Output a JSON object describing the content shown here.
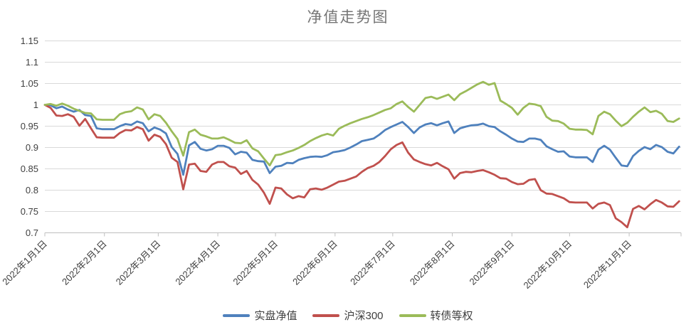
{
  "title": "净值走势图",
  "colors": {
    "series_blue": "#4F81BD",
    "series_red": "#C0504D",
    "series_green": "#9BBB59",
    "gridline": "#D9D9D9",
    "axis": "#BFBFBF",
    "tick_text": "#404040",
    "title_text": "#757575",
    "background": "#FFFFFF"
  },
  "chart_data": {
    "type": "line",
    "title": "净值走势图",
    "xlabel": "",
    "ylabel": "",
    "grid": "horizontal",
    "legend_position": "bottom-center",
    "ylim": [
      0.7,
      1.15
    ],
    "x_unit": "days_since_2022-01-01",
    "x_axis_max_day": 331,
    "y_ticks": [
      {
        "value": 1.15,
        "label": "1.15"
      },
      {
        "value": 1.1,
        "label": "1.1"
      },
      {
        "value": 1.05,
        "label": "1.05"
      },
      {
        "value": 1.0,
        "label": "1"
      },
      {
        "value": 0.95,
        "label": "0.95"
      },
      {
        "value": 0.9,
        "label": "0.9"
      },
      {
        "value": 0.85,
        "label": "0.85"
      },
      {
        "value": 0.8,
        "label": "0.8"
      },
      {
        "value": 0.75,
        "label": "0.75"
      },
      {
        "value": 0.7,
        "label": "0.7"
      }
    ],
    "x_ticks": [
      {
        "day": 0,
        "label": "2022年1月1日"
      },
      {
        "day": 31,
        "label": "2022年2月1日"
      },
      {
        "day": 59,
        "label": "2022年3月1日"
      },
      {
        "day": 90,
        "label": "2022年4月1日"
      },
      {
        "day": 120,
        "label": "2022年5月1日"
      },
      {
        "day": 151,
        "label": "2022年6月1日"
      },
      {
        "day": 181,
        "label": "2022年7月1日"
      },
      {
        "day": 212,
        "label": "2022年8月1日"
      },
      {
        "day": 243,
        "label": "2022年9月1日"
      },
      {
        "day": 273,
        "label": "2022年10月1日"
      },
      {
        "day": 304,
        "label": "2022年11月1日"
      }
    ],
    "x_days": [
      0,
      3,
      6,
      9,
      12,
      15,
      18,
      21,
      24,
      27,
      30,
      33,
      36,
      39,
      42,
      45,
      48,
      51,
      54,
      57,
      60,
      63,
      66,
      69,
      72,
      75,
      78,
      81,
      84,
      87,
      90,
      93,
      96,
      99,
      102,
      105,
      108,
      111,
      114,
      117,
      120,
      123,
      126,
      129,
      132,
      135,
      138,
      141,
      144,
      147,
      150,
      153,
      156,
      159,
      162,
      165,
      168,
      171,
      174,
      177,
      180,
      183,
      186,
      189,
      192,
      195,
      198,
      201,
      204,
      207,
      210,
      213,
      216,
      219,
      222,
      225,
      228,
      231,
      234,
      237,
      240,
      243,
      246,
      249,
      252,
      255,
      258,
      261,
      264,
      267,
      270,
      273,
      276,
      279,
      282,
      285,
      288,
      291,
      294,
      297,
      300,
      303,
      306,
      309,
      312,
      315,
      318,
      321,
      324,
      327,
      330
    ],
    "series": [
      {
        "name": "实盘净值",
        "color": "#4F81BD",
        "values": [
          1.0,
          0.999,
          0.992,
          0.996,
          0.989,
          0.984,
          0.988,
          0.976,
          0.974,
          0.945,
          0.943,
          0.943,
          0.943,
          0.95,
          0.955,
          0.953,
          0.961,
          0.957,
          0.938,
          0.947,
          0.942,
          0.933,
          0.901,
          0.885,
          0.836,
          0.905,
          0.913,
          0.897,
          0.893,
          0.896,
          0.904,
          0.904,
          0.899,
          0.884,
          0.89,
          0.888,
          0.871,
          0.868,
          0.867,
          0.84,
          0.855,
          0.857,
          0.864,
          0.863,
          0.871,
          0.875,
          0.878,
          0.879,
          0.878,
          0.882,
          0.889,
          0.891,
          0.894,
          0.9,
          0.907,
          0.915,
          0.918,
          0.921,
          0.93,
          0.941,
          0.948,
          0.954,
          0.96,
          0.948,
          0.934,
          0.947,
          0.954,
          0.957,
          0.952,
          0.957,
          0.961,
          0.934,
          0.945,
          0.949,
          0.952,
          0.953,
          0.956,
          0.95,
          0.948,
          0.938,
          0.93,
          0.921,
          0.914,
          0.913,
          0.921,
          0.921,
          0.918,
          0.903,
          0.896,
          0.89,
          0.891,
          0.879,
          0.877,
          0.877,
          0.877,
          0.866,
          0.895,
          0.904,
          0.895,
          0.876,
          0.858,
          0.856,
          0.88,
          0.892,
          0.901,
          0.896,
          0.906,
          0.901,
          0.89,
          0.886,
          0.902
        ]
      },
      {
        "name": "沪深300",
        "color": "#C0504D",
        "values": [
          1.0,
          0.993,
          0.975,
          0.974,
          0.978,
          0.972,
          0.951,
          0.967,
          0.945,
          0.924,
          0.923,
          0.923,
          0.923,
          0.934,
          0.941,
          0.94,
          0.948,
          0.943,
          0.916,
          0.93,
          0.925,
          0.908,
          0.876,
          0.866,
          0.802,
          0.86,
          0.862,
          0.845,
          0.843,
          0.86,
          0.866,
          0.866,
          0.856,
          0.853,
          0.838,
          0.845,
          0.824,
          0.813,
          0.794,
          0.768,
          0.806,
          0.804,
          0.79,
          0.781,
          0.786,
          0.783,
          0.802,
          0.804,
          0.801,
          0.806,
          0.813,
          0.82,
          0.822,
          0.827,
          0.832,
          0.843,
          0.852,
          0.857,
          0.866,
          0.88,
          0.896,
          0.906,
          0.912,
          0.888,
          0.872,
          0.866,
          0.861,
          0.858,
          0.864,
          0.856,
          0.849,
          0.827,
          0.84,
          0.843,
          0.842,
          0.845,
          0.847,
          0.842,
          0.836,
          0.828,
          0.827,
          0.819,
          0.814,
          0.815,
          0.824,
          0.826,
          0.8,
          0.792,
          0.791,
          0.786,
          0.781,
          0.772,
          0.771,
          0.771,
          0.771,
          0.757,
          0.768,
          0.771,
          0.765,
          0.734,
          0.725,
          0.713,
          0.756,
          0.763,
          0.755,
          0.767,
          0.777,
          0.771,
          0.762,
          0.761,
          0.774
        ]
      },
      {
        "name": "转债等权",
        "color": "#9BBB59",
        "values": [
          1.0,
          1.002,
          0.998,
          1.003,
          0.998,
          0.991,
          0.986,
          0.981,
          0.98,
          0.966,
          0.965,
          0.965,
          0.965,
          0.978,
          0.983,
          0.985,
          0.994,
          0.989,
          0.966,
          0.978,
          0.974,
          0.958,
          0.938,
          0.92,
          0.881,
          0.936,
          0.942,
          0.93,
          0.926,
          0.921,
          0.921,
          0.924,
          0.918,
          0.911,
          0.91,
          0.917,
          0.898,
          0.891,
          0.874,
          0.858,
          0.882,
          0.884,
          0.889,
          0.893,
          0.899,
          0.906,
          0.915,
          0.922,
          0.928,
          0.932,
          0.928,
          0.944,
          0.951,
          0.957,
          0.962,
          0.967,
          0.971,
          0.976,
          0.982,
          0.988,
          0.992,
          1.002,
          1.008,
          0.995,
          0.984,
          1.0,
          1.016,
          1.019,
          1.014,
          1.019,
          1.024,
          1.011,
          1.025,
          1.032,
          1.04,
          1.048,
          1.054,
          1.047,
          1.051,
          1.01,
          1.002,
          0.993,
          0.977,
          0.993,
          1.003,
          1.001,
          0.997,
          0.972,
          0.963,
          0.962,
          0.956,
          0.944,
          0.942,
          0.942,
          0.941,
          0.931,
          0.974,
          0.984,
          0.978,
          0.963,
          0.95,
          0.958,
          0.972,
          0.984,
          0.994,
          0.983,
          0.986,
          0.979,
          0.962,
          0.96,
          0.968
        ]
      }
    ]
  },
  "legend": {
    "items": [
      {
        "label": "实盘净值",
        "color": "#4F81BD"
      },
      {
        "label": "沪深300",
        "color": "#C0504D"
      },
      {
        "label": "转债等权",
        "color": "#9BBB59"
      }
    ]
  }
}
